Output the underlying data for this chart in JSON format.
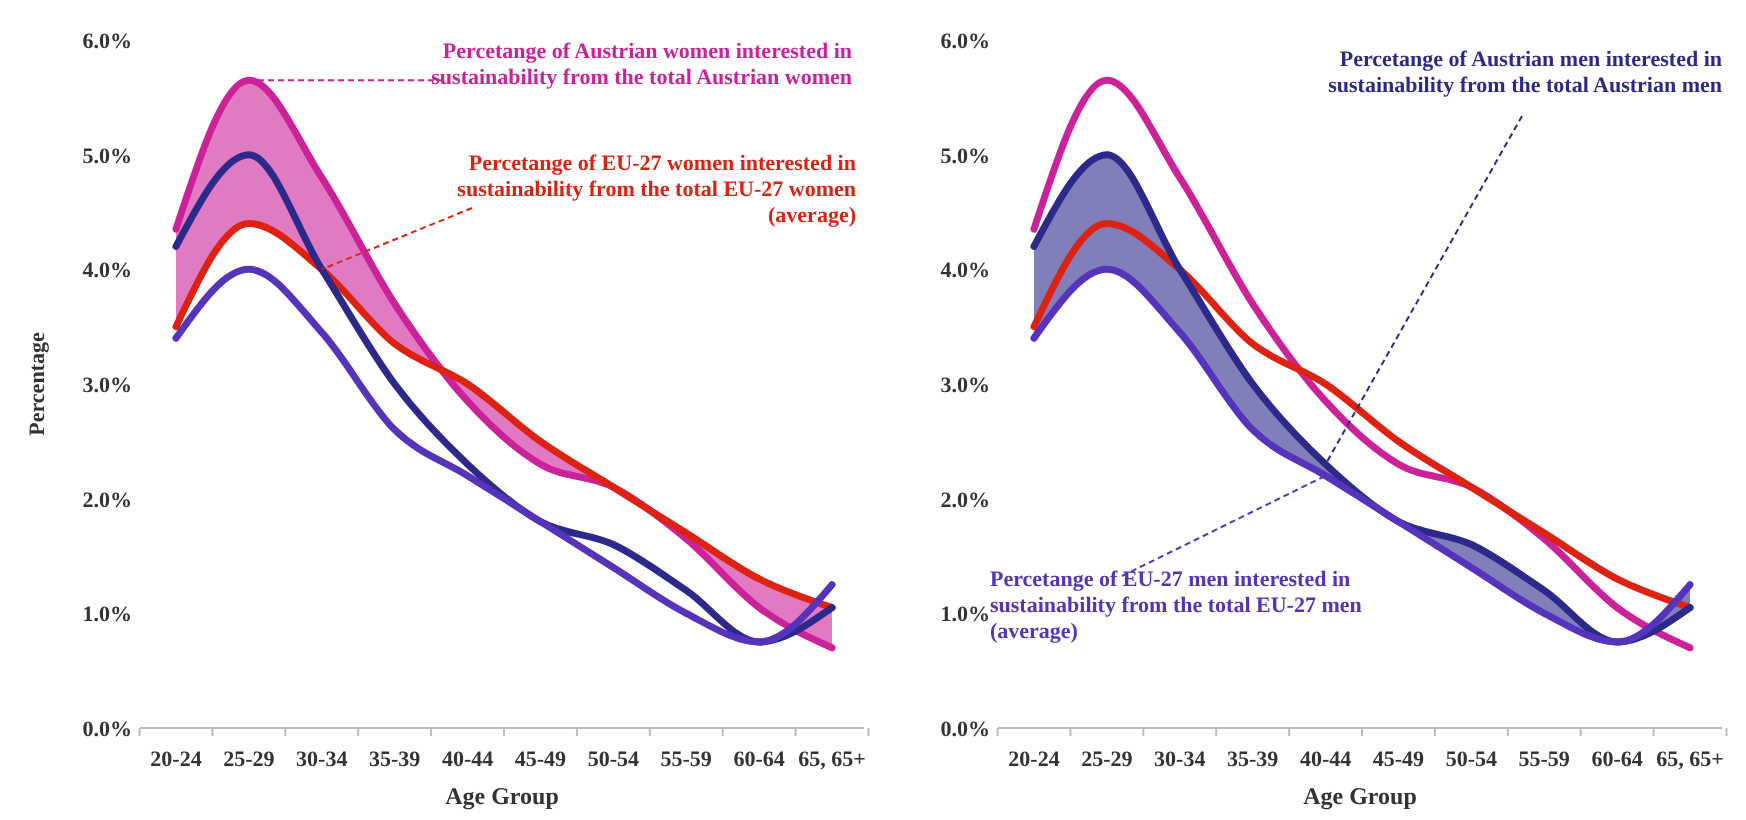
{
  "chart_data": [
    {
      "type": "line",
      "xlabel": "Age Group",
      "ylabel": "Percentage",
      "categories": [
        "20-24",
        "25-29",
        "30-34",
        "35-39",
        "40-44",
        "45-49",
        "50-54",
        "55-59",
        "60-64",
        "65, 65+"
      ],
      "ylim": [
        0,
        6
      ],
      "yticks": [
        {
          "value": 0,
          "label": "0.0%"
        },
        {
          "value": 1,
          "label": "1.0%"
        },
        {
          "value": 2,
          "label": "2.0%"
        },
        {
          "value": 3,
          "label": "3.0%"
        },
        {
          "value": 4,
          "label": "4.0%"
        },
        {
          "value": 5,
          "label": "5.0%"
        },
        {
          "value": 6,
          "label": "6.0%"
        }
      ],
      "grid": false,
      "legend": false,
      "series": [
        {
          "name": "Percetange of Austrian women interested in sustainability from the total Austrian women",
          "color": "#cc2299",
          "values": [
            4.35,
            5.65,
            4.8,
            3.7,
            2.85,
            2.3,
            2.1,
            1.65,
            1.05,
            0.7
          ],
          "lower": [
            3.5,
            4.4,
            4.0,
            3.35,
            3.0,
            2.5,
            2.1,
            1.7,
            1.3,
            1.05
          ],
          "upper": [
            4.35,
            5.65,
            4.8,
            3.7,
            2.85,
            2.3,
            2.1,
            1.65,
            1.05,
            0.7
          ]
        },
        {
          "name": "Percetange of EU-27 women interested in sustainability from the total EU-27 women (average)",
          "color": "#dd2211",
          "values": [
            3.5,
            4.4,
            4.0,
            3.35,
            3.0,
            2.5,
            2.1,
            1.7,
            1.3,
            1.05
          ]
        },
        {
          "color": "#2b2a8a",
          "values": [
            4.2,
            5.0,
            4.0,
            3.0,
            2.3,
            1.8,
            1.6,
            1.2,
            0.75,
            1.05
          ]
        },
        {
          "color": "#5533bb",
          "values": [
            3.4,
            4.0,
            3.45,
            2.6,
            2.2,
            1.8,
            1.4,
            1.0,
            0.75,
            1.25
          ]
        }
      ]
    },
    {
      "type": "line",
      "xlabel": "Age Group",
      "categories": [
        "20-24",
        "25-29",
        "30-34",
        "35-39",
        "40-44",
        "45-49",
        "50-54",
        "55-59",
        "60-64",
        "65, 65+"
      ],
      "ylim": [
        0,
        6
      ],
      "yticks": [
        {
          "value": 0,
          "label": "0.0%"
        },
        {
          "value": 1,
          "label": "1.0%"
        },
        {
          "value": 2,
          "label": "2.0%"
        },
        {
          "value": 3,
          "label": "3.0%"
        },
        {
          "value": 4,
          "label": "4.0%"
        },
        {
          "value": 5,
          "label": "5.0%"
        },
        {
          "value": 6,
          "label": "6.0%"
        }
      ],
      "grid": false,
      "legend": false,
      "series": [
        {
          "color": "#cc2299",
          "values": [
            4.35,
            5.65,
            4.8,
            3.7,
            2.85,
            2.3,
            2.1,
            1.65,
            1.05,
            0.7
          ]
        },
        {
          "color": "#dd2211",
          "values": [
            3.5,
            4.4,
            4.0,
            3.35,
            3.0,
            2.5,
            2.1,
            1.7,
            1.3,
            1.05
          ]
        },
        {
          "name": "Percetange of Austrian men interested in sustainability from the total Austrian men",
          "color": "#2b2a8a",
          "values": [
            4.2,
            5.0,
            4.0,
            3.0,
            2.3,
            1.8,
            1.6,
            1.2,
            0.75,
            1.05
          ],
          "lower": [
            3.4,
            4.0,
            3.45,
            2.6,
            2.2,
            1.8,
            1.4,
            1.0,
            0.75,
            1.25
          ],
          "upper": [
            4.2,
            5.0,
            4.0,
            3.0,
            2.3,
            1.8,
            1.6,
            1.2,
            0.75,
            1.05
          ]
        },
        {
          "name": "Percetange of EU-27 men interested in sustainability from the total EU-27 men (average)",
          "color": "#5533bb",
          "values": [
            3.4,
            4.0,
            3.45,
            2.6,
            2.2,
            1.8,
            1.4,
            1.0,
            0.75,
            1.25
          ]
        }
      ]
    }
  ]
}
